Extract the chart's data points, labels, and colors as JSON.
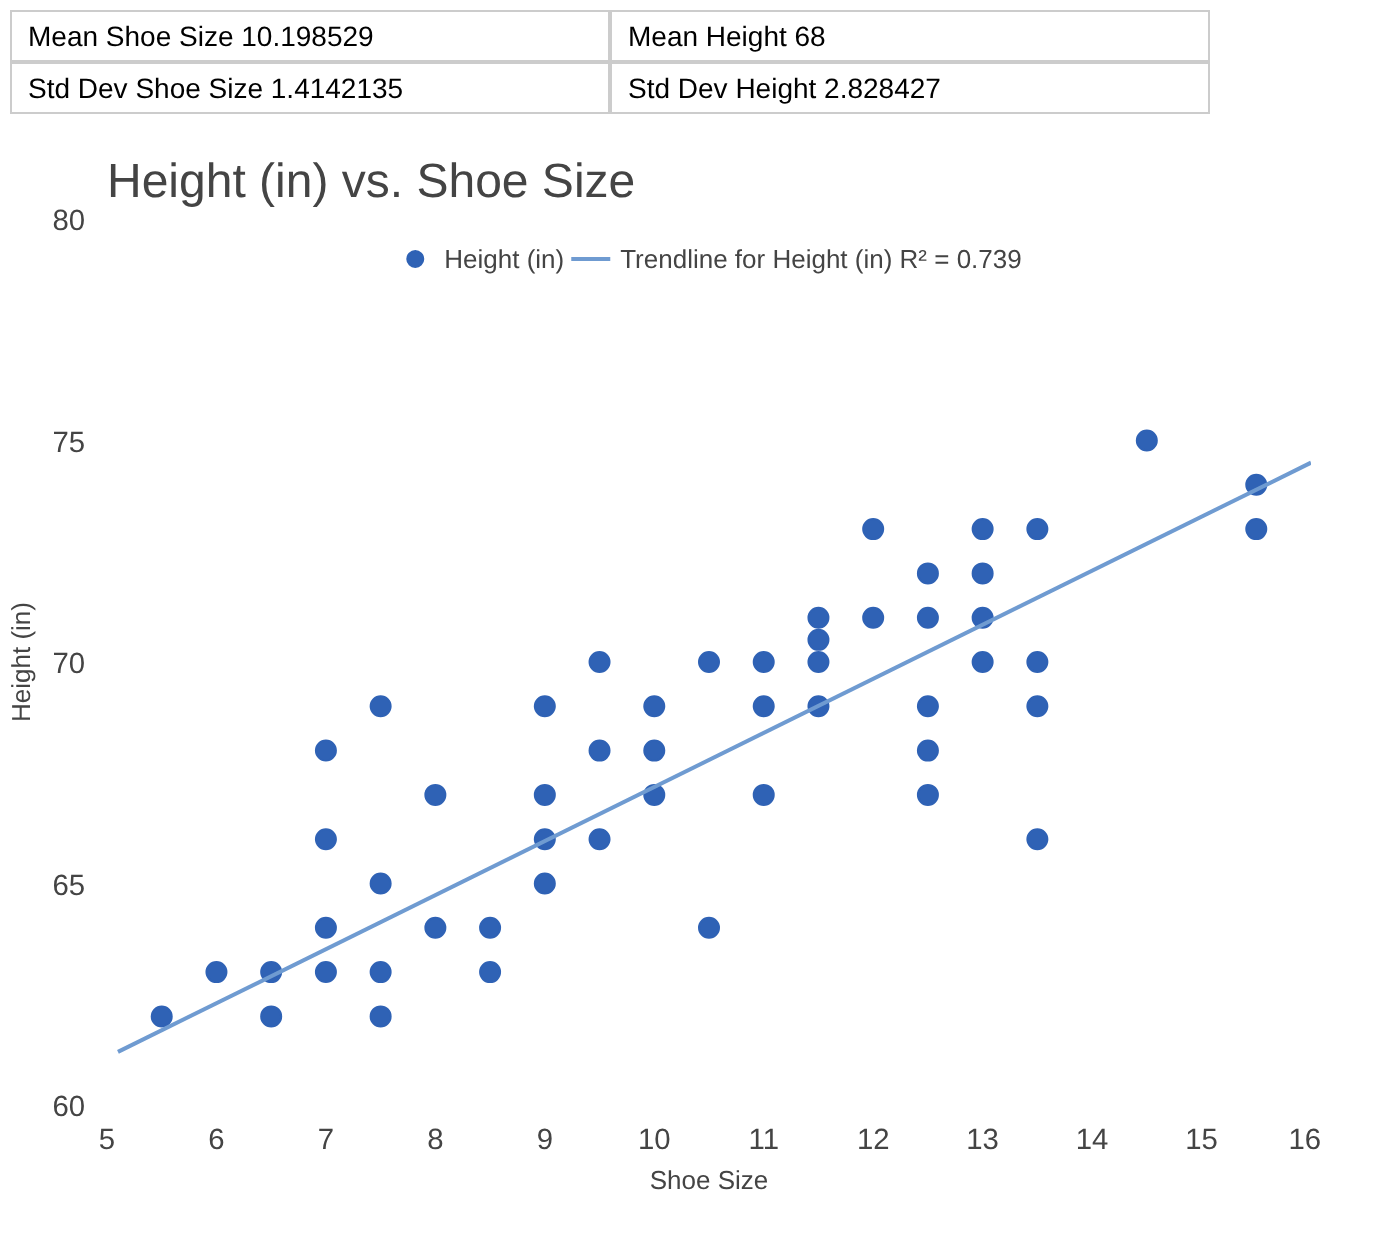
{
  "chart_data": {
    "type": "scatter",
    "title": "Height (in) vs. Shoe Size",
    "xlabel": "Shoe Size",
    "ylabel": "Height (in)",
    "annotations": [
      "Mean Shoe Size 10.198529",
      "Mean Height 68",
      "Std Dev Shoe Size 1.4142135",
      "Std Dev Height 2.828427"
    ],
    "xlim": [
      5,
      16
    ],
    "ylim": [
      60,
      80
    ],
    "xticks": [
      5,
      6,
      7,
      8,
      9,
      10,
      11,
      12,
      13,
      14,
      15,
      16
    ],
    "yticks": [
      60,
      65,
      70,
      75,
      80
    ],
    "grid": false,
    "legend": "top",
    "marker": "circle",
    "series": [
      {
        "name": "Height (in)",
        "color": "#2f62b5",
        "x": [
          5.5,
          6,
          6.5,
          6.5,
          7,
          7,
          7,
          7,
          7.5,
          7.5,
          7.5,
          7.5,
          8,
          8,
          8.5,
          8.5,
          9,
          9,
          9,
          9,
          9.5,
          9.5,
          9.5,
          10,
          10,
          10,
          10.5,
          10.5,
          11,
          11,
          11,
          11.5,
          11.5,
          11.5,
          11.5,
          12,
          12,
          12.5,
          12.5,
          12.5,
          12.5,
          12.5,
          13,
          13,
          13,
          13,
          13.5,
          13.5,
          13.5,
          13.5,
          14.5,
          15.5,
          15.5
        ],
        "values": [
          62,
          63,
          63,
          62,
          64,
          63,
          66,
          68,
          63,
          62,
          65,
          69,
          67,
          64,
          64,
          63,
          69,
          67,
          66,
          65,
          70,
          68,
          66,
          69,
          68,
          67,
          70,
          64,
          70,
          69,
          67,
          71,
          70.5,
          70,
          69,
          73,
          71,
          72,
          71,
          69,
          68,
          67,
          73,
          72,
          71,
          70,
          73,
          70,
          69,
          66,
          75,
          74,
          73
        ]
      },
      {
        "name": "Trendline for Height (in) R² = 0.739",
        "type": "line",
        "color": "#6f9bd1",
        "marker": "none",
        "x": [
          5.1,
          16
        ],
        "values": [
          61.2,
          74.5
        ]
      }
    ]
  }
}
